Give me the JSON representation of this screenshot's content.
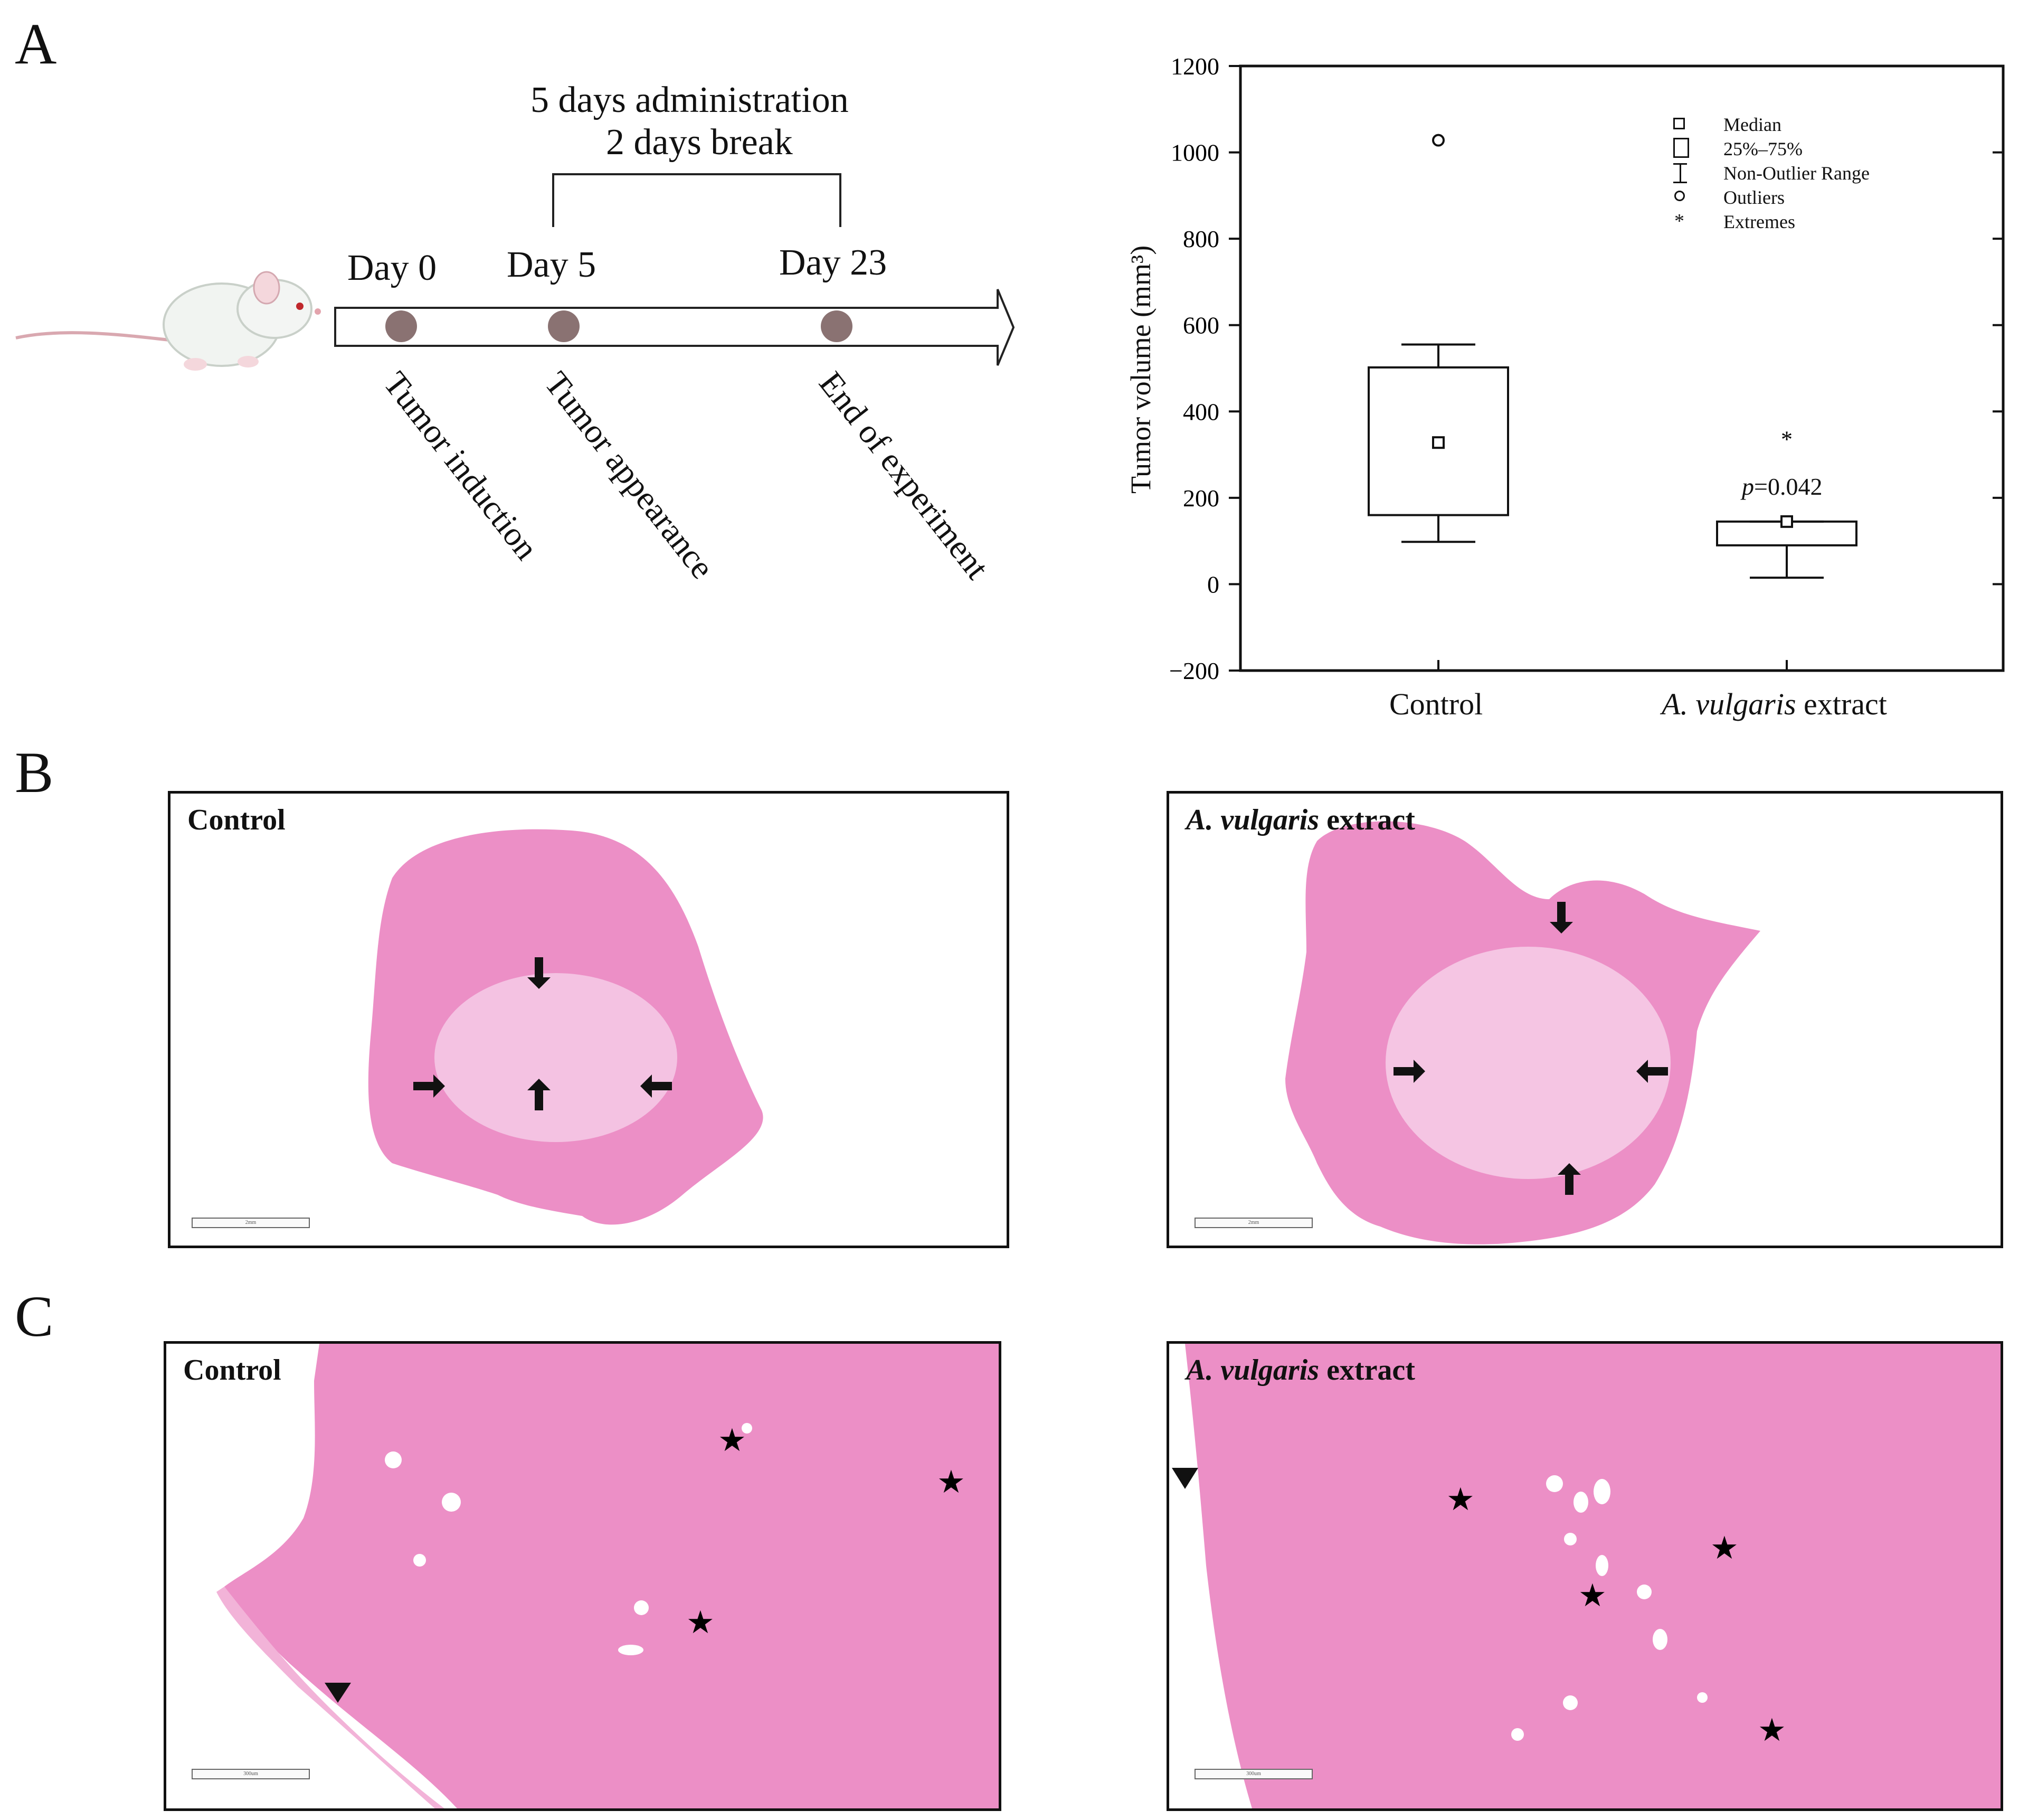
{
  "panels": {
    "a": "A",
    "b": "B",
    "c": "C"
  },
  "timeline": {
    "bracket_line1": "5 days administration",
    "bracket_line2": "2 days break",
    "days": [
      "Day 0",
      "Day 5",
      "Day 23"
    ],
    "events": [
      "Tumor induction",
      "Tumor appearance",
      "End of experiment"
    ]
  },
  "chart_data": {
    "type": "box",
    "ylabel": "Tumor volume (mm³)",
    "ylim": [
      -200,
      1200
    ],
    "yticks": [
      -200,
      0,
      200,
      400,
      600,
      800,
      1000,
      1200
    ],
    "categories": [
      "Control",
      "A. vulgaris extract"
    ],
    "groups": [
      {
        "name": "Control",
        "median": 328,
        "q1": 160,
        "q3": 502,
        "whisker_low": 98,
        "whisker_high": 555,
        "outliers": [
          1028
        ],
        "extremes": []
      },
      {
        "name": "A. vulgaris extract",
        "median": 145,
        "q1": 90,
        "q3": 145,
        "whisker_low": 15,
        "whisker_high": 145,
        "outliers": [],
        "extremes": [
          340
        ]
      }
    ],
    "annotation": {
      "p_label": "p",
      "p_value": "=0.042"
    },
    "legend": [
      "Median",
      "25%–75%",
      "Non-Outlier Range",
      "Outliers",
      "Extremes"
    ]
  },
  "histology_b": {
    "left_title": "Control",
    "right_title_italic": "A. vulgaris",
    "right_title_rest": " extract",
    "scale": "2mm"
  },
  "histology_c": {
    "left_title": "Control",
    "right_title_italic": "A. vulgaris",
    "right_title_rest": " extract",
    "scale": "300um"
  },
  "colors": {
    "tissue": "#ec8fc6",
    "tissue_light": "#f6cbe6",
    "dot": "#8a7272"
  }
}
